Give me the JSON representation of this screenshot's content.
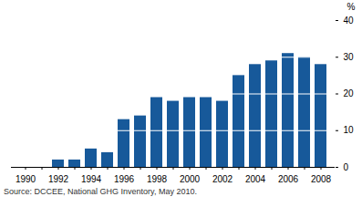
{
  "chart_data": {
    "type": "bar",
    "categories": [
      "1990",
      null,
      "1992",
      null,
      "1994",
      null,
      "1996",
      null,
      "1998",
      null,
      "2000",
      null,
      "2002",
      null,
      "2004",
      null,
      "2006",
      null,
      "2008"
    ],
    "values": [
      0,
      0,
      2,
      2,
      5,
      4,
      13,
      14,
      19,
      18,
      19,
      19,
      18,
      25,
      28,
      29,
      31,
      30,
      28
    ],
    "color": "#17599a",
    "y_label": "%",
    "ylim": [
      0,
      40
    ],
    "yticks": [
      0,
      10,
      20,
      30,
      40
    ],
    "grid": true,
    "caption": "Source: DCCEE, National GHG Inventory, May 2010."
  }
}
